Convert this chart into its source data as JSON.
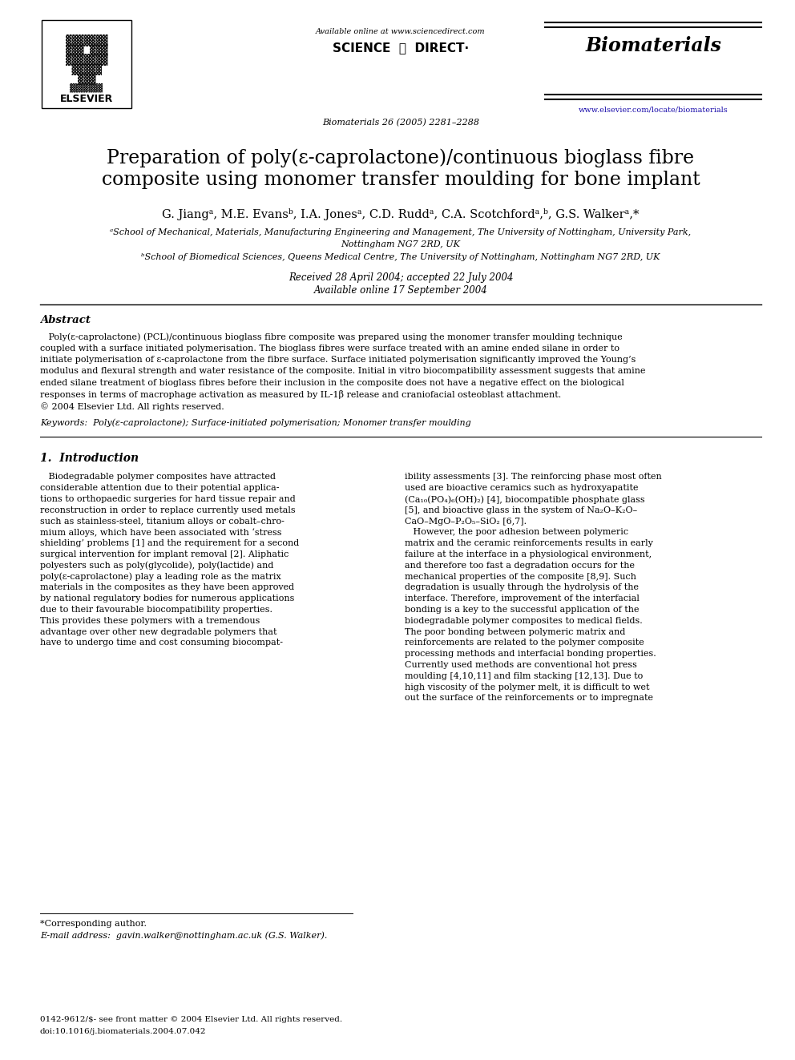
{
  "bg_color": "#ffffff",
  "page_width": 9.92,
  "page_height": 13.23,
  "dpi": 100,
  "header_available": "Available online at www.sciencedirect.com",
  "header_journal_ref": "Biomaterials 26 (2005) 2281–2288",
  "header_journal_name": "Biomaterials",
  "header_journal_url": "www.elsevier.com/locate/biomaterials",
  "title_line1": "Preparation of poly(ε-caprolactone)/continuous bioglass fibre",
  "title_line2": "composite using monomer transfer moulding for bone implant",
  "authors": "G. Jiangᵃ, M.E. Evansᵇ, I.A. Jonesᵃ, C.D. Ruddᵃ, C.A. Scotchfordᵃ,ᵇ, G.S. Walkerᵃ,*",
  "affil_a": "ᵃSchool of Mechanical, Materials, Manufacturing Engineering and Management, The University of Nottingham, University Park,",
  "affil_a2": "Nottingham NG7 2RD, UK",
  "affil_b": "ᵇSchool of Biomedical Sciences, Queens Medical Centre, The University of Nottingham, Nottingham NG7 2RD, UK",
  "received": "Received 28 April 2004; accepted 22 July 2004",
  "available_online": "Available online 17 September 2004",
  "abstract_label": "Abstract",
  "abstract_body": "   Poly(ε-caprolactone) (PCL)/continuous bioglass fibre composite was prepared using the monomer transfer moulding technique coupled with a surface initiated polymerisation. The bioglass fibres were surface treated with an amine ended silane in order to initiate polymerisation of ε-caprolactone from the fibre surface. Surface initiated polymerisation significantly improved the Young’s modulus and flexural strength and water resistance of the composite. Initial in vitro biocompatibility assessment suggests that amine ended silane treatment of bioglass fibres before their inclusion in the composite does not have a negative effect on the biological responses in terms of macrophage activation as measured by IL-1β release and craniofacial osteoblast attachment.\n© 2004 Elsevier Ltd. All rights reserved.",
  "keywords_line": "Keywords:  Poly(ε-caprolactone); Surface-initiated polymerisation; Monomer transfer moulding",
  "intro_heading": "1.  Introduction",
  "col1_lines": [
    "   Biodegradable polymer composites have attracted",
    "considerable attention due to their potential applica-",
    "tions to orthopaedic surgeries for hard tissue repair and",
    "reconstruction in order to replace currently used metals",
    "such as stainless-steel, titanium alloys or cobalt–chro-",
    "mium alloys, which have been associated with ‘stress",
    "shielding’ problems [1] and the requirement for a second",
    "surgical intervention for implant removal [2]. Aliphatic",
    "polyesters such as poly(glycolide), poly(lactide) and",
    "poly(ε-caprolactone) play a leading role as the matrix",
    "materials in the composites as they have been approved",
    "by national regulatory bodies for numerous applications",
    "due to their favourable biocompatibility properties.",
    "This provides these polymers with a tremendous",
    "advantage over other new degradable polymers that",
    "have to undergo time and cost consuming biocompat-"
  ],
  "col2_lines": [
    "ibility assessments [3]. The reinforcing phase most often",
    "used are bioactive ceramics such as hydroxyapatite",
    "(Ca₁₀(PO₄)₆(OH)₂) [4], biocompatible phosphate glass",
    "[5], and bioactive glass in the system of Na₂O–K₂O–",
    "CaO–MgO–P₂O₅–SiO₂ [6,7].",
    "   However, the poor adhesion between polymeric",
    "matrix and the ceramic reinforcements results in early",
    "failure at the interface in a physiological environment,",
    "and therefore too fast a degradation occurs for the",
    "mechanical properties of the composite [8,9]. Such",
    "degradation is usually through the hydrolysis of the",
    "interface. Therefore, improvement of the interfacial",
    "bonding is a key to the successful application of the",
    "biodegradable polymer composites to medical fields.",
    "The poor bonding between polymeric matrix and",
    "reinforcements are related to the polymer composite",
    "processing methods and interfacial bonding properties.",
    "Currently used methods are conventional hot press",
    "moulding [4,10,11] and film stacking [12,13]. Due to",
    "high viscosity of the polymer melt, it is difficult to wet",
    "out the surface of the reinforcements or to impregnate"
  ],
  "footnote_star": "*Corresponding author.",
  "footnote_email": "E-mail address:  gavin.walker@nottingham.ac.uk (G.S. Walker).",
  "footer1": "0142-9612/$- see front matter © 2004 Elsevier Ltd. All rights reserved.",
  "footer2": "doi:10.1016/j.biomaterials.2004.07.042"
}
